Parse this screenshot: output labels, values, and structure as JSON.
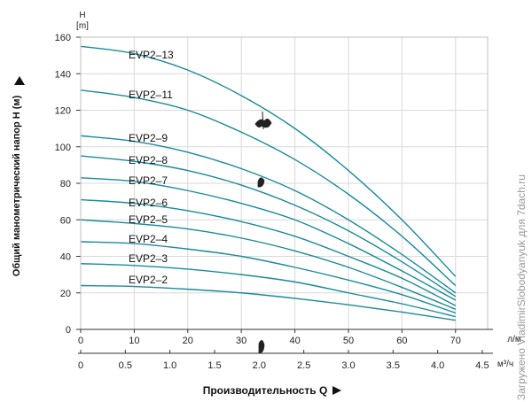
{
  "chart_data": {
    "type": "line",
    "title": "",
    "ylabel": "Общий манометрический напор H (м)",
    "xlabel": "Производительность Q",
    "y_unit_top": "H",
    "y_unit_bottom": "[m]",
    "x_unit_lpm": "л/м",
    "x_unit_m3h": "м³/ч",
    "ylim": [
      0,
      160
    ],
    "xlim_lpm": [
      0,
      76
    ],
    "y_ticks": [
      "0",
      "20",
      "40",
      "60",
      "80",
      "100",
      "120",
      "140",
      "160"
    ],
    "x_ticks_lpm": [
      "0",
      "10",
      "20",
      "30",
      "40",
      "50",
      "60",
      "70"
    ],
    "x_ticks_m3h": [
      "0",
      "0.5",
      "1.0",
      "1.5",
      "2.0",
      "2.5",
      "3.0",
      "3.5",
      "4.0",
      "4.5"
    ],
    "grid": true,
    "line_color": "#1a8a99",
    "series": [
      {
        "name": "EVP2–13",
        "x": [
          0,
          10,
          20,
          30,
          40,
          50,
          60,
          70
        ],
        "values": [
          155,
          151,
          142,
          128,
          110,
          87,
          60,
          29
        ]
      },
      {
        "name": "EVP2–11",
        "x": [
          0,
          10,
          20,
          30,
          40,
          50,
          60,
          70
        ],
        "values": [
          131,
          127,
          120,
          108,
          93,
          74,
          51,
          24
        ]
      },
      {
        "name": "EVP2–9",
        "x": [
          0,
          10,
          20,
          30,
          40,
          50,
          60,
          70
        ],
        "values": [
          106,
          103,
          97,
          88,
          76,
          60,
          41,
          20
        ]
      },
      {
        "name": "EVP2–8",
        "x": [
          0,
          10,
          20,
          30,
          40,
          50,
          60,
          70
        ],
        "values": [
          95,
          92,
          87,
          79,
          68,
          54,
          37,
          18
        ]
      },
      {
        "name": "EVP2–7",
        "x": [
          0,
          10,
          20,
          30,
          40,
          50,
          60,
          70
        ],
        "values": [
          83,
          81,
          76,
          69,
          60,
          47,
          32,
          16
        ]
      },
      {
        "name": "EVP2–6",
        "x": [
          0,
          10,
          20,
          30,
          40,
          50,
          60,
          70
        ],
        "values": [
          71,
          69,
          65,
          59,
          51,
          40,
          28,
          13
        ]
      },
      {
        "name": "EVP2–5",
        "x": [
          0,
          10,
          20,
          30,
          40,
          50,
          60,
          70
        ],
        "values": [
          60,
          58,
          55,
          50,
          43,
          34,
          23,
          11
        ]
      },
      {
        "name": "EVP2–4",
        "x": [
          0,
          10,
          20,
          30,
          40,
          50,
          60,
          70
        ],
        "values": [
          48,
          47,
          44,
          40,
          34,
          27,
          19,
          9
        ]
      },
      {
        "name": "EVP2–3",
        "x": [
          0,
          10,
          20,
          30,
          40,
          50,
          60,
          70
        ],
        "values": [
          36,
          35,
          33,
          30,
          26,
          20,
          14,
          7
        ]
      },
      {
        "name": "EVP2–2",
        "x": [
          0,
          10,
          20,
          30,
          40,
          50,
          60,
          70
        ],
        "values": [
          24,
          23.5,
          22,
          20,
          17,
          13.5,
          9.5,
          5
        ]
      }
    ]
  },
  "watermark": "Загружено VladimirSlobodyanyuk для 7dach.ru"
}
